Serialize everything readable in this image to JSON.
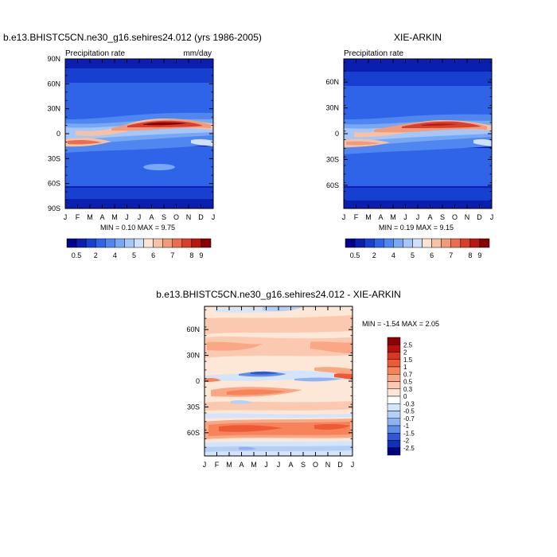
{
  "chart_data": [
    {
      "type": "heatmap",
      "title": "b.e13.BHISTC5CN.ne30_g16.sehires24.012 (yrs 1986-2005)",
      "left_label": "Precipitation rate",
      "right_label": "mm/day",
      "x_ticks": [
        "J",
        "F",
        "M",
        "A",
        "M",
        "J",
        "J",
        "A",
        "S",
        "O",
        "N",
        "D",
        "J"
      ],
      "y_ticks": [
        "90N",
        "60N",
        "30N",
        "0",
        "30S",
        "60S",
        "90S"
      ],
      "y_tick_values": [
        90,
        60,
        30,
        0,
        -30,
        -60,
        -90
      ],
      "ylim": [
        -90,
        90
      ],
      "min_max_text": "MIN =   0.10 MAX =   9.75",
      "min": 0.1,
      "max": 9.75,
      "colorbar_labels": [
        "0.5",
        "2",
        "4",
        "5",
        "6",
        "7",
        "8",
        "9"
      ],
      "colorbar_levels": [
        0.5,
        1,
        2,
        3,
        4,
        4.5,
        5,
        5.5,
        6,
        6.5,
        7,
        7.5,
        8,
        8.5,
        9
      ]
    },
    {
      "type": "heatmap",
      "title": "XIE-ARKIN",
      "left_label": "Precipitation rate",
      "x_ticks": [
        "J",
        "F",
        "M",
        "A",
        "M",
        "J",
        "J",
        "A",
        "S",
        "O",
        "N",
        "D",
        "J"
      ],
      "y_ticks": [
        "60N",
        "30N",
        "0",
        "30S",
        "60S"
      ],
      "y_tick_values": [
        60,
        30,
        0,
        -30,
        -60
      ],
      "ylim": [
        -87,
        87
      ],
      "min_max_text": "MIN =   0.19 MAX =   9.15",
      "min": 0.19,
      "max": 9.15,
      "colorbar_labels": [
        "0.5",
        "2",
        "4",
        "5",
        "6",
        "7",
        "8",
        "9"
      ],
      "colorbar_levels": [
        0.5,
        1,
        2,
        3,
        4,
        4.5,
        5,
        5.5,
        6,
        6.5,
        7,
        7.5,
        8,
        8.5,
        9
      ]
    },
    {
      "type": "heatmap",
      "title": "b.e13.BHISTC5CN.ne30_g16.sehires24.012 - XIE-ARKIN",
      "x_ticks": [
        "J",
        "F",
        "M",
        "A",
        "M",
        "J",
        "J",
        "A",
        "S",
        "O",
        "N",
        "D",
        "J"
      ],
      "y_ticks": [
        "60N",
        "30N",
        "0",
        "30S",
        "60S"
      ],
      "y_tick_values": [
        60,
        30,
        0,
        -30,
        -60
      ],
      "ylim": [
        -87,
        87
      ],
      "min_max_text": "MIN =  -1.54 MAX =   2.05",
      "min": -1.54,
      "max": 2.05,
      "colorbar_labels": [
        "2.5",
        "2",
        "1.5",
        "1",
        "0.7",
        "0.5",
        "0.3",
        "0",
        "-0.3",
        "-0.5",
        "-0.7",
        "-1",
        "-1.5",
        "-2",
        "-2.5"
      ]
    }
  ],
  "colors": {
    "seq": [
      "#00008b",
      "#0a1fb0",
      "#1840d0",
      "#2f63e8",
      "#4f86f0",
      "#78a7f4",
      "#a6c6f8",
      "#cfe0fb",
      "#fbe4d6",
      "#f7c1a6",
      "#f29a79",
      "#ea6d4f",
      "#d9402c",
      "#b8180f",
      "#8a0000"
    ],
    "div": [
      "#8b0000",
      "#b5100c",
      "#d8361f",
      "#ee5a34",
      "#f7835b",
      "#f9a785",
      "#fbc8b0",
      "#fde8d8",
      "#ffffff",
      "#d4e5fb",
      "#b4cff8",
      "#8fb3f2",
      "#5f8ce8",
      "#2f58d8",
      "#1030b8",
      "#00007e"
    ]
  }
}
